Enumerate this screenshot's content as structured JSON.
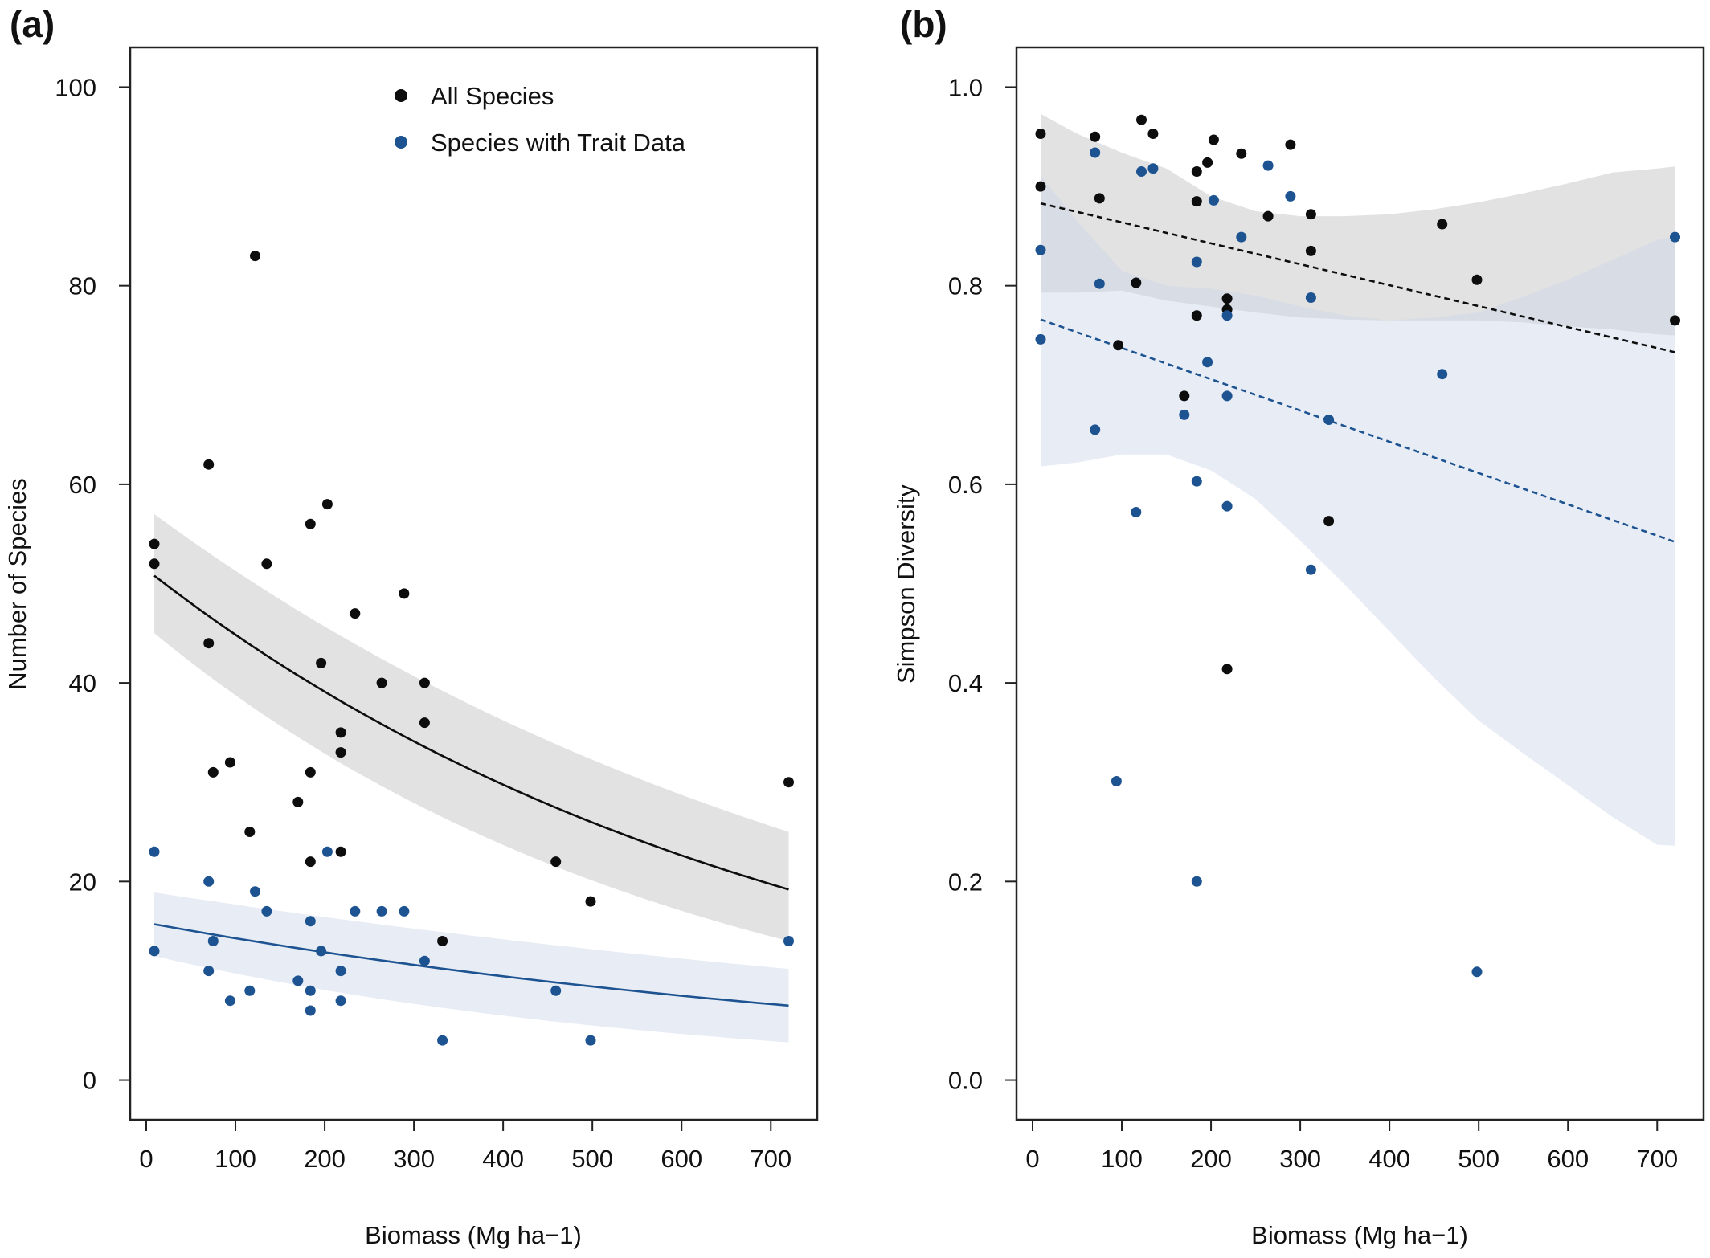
{
  "colors": {
    "all_species": "#0d0d0d",
    "trait_species": "#1d5391",
    "band_all": "#d6d6d6",
    "band_trait": "#c9d5e8",
    "axis": "#222222"
  },
  "chart_data": [
    {
      "type": "scatter",
      "panel_label": "(a)",
      "xlabel": "Biomass (Mg ha−1)",
      "ylabel": "Number of Species",
      "xlim": [
        -18,
        752
      ],
      "ylim": [
        -4,
        104
      ],
      "xticks": [
        0,
        100,
        200,
        300,
        400,
        500,
        600,
        700
      ],
      "yticks": [
        0,
        20,
        40,
        60,
        80,
        100
      ],
      "xtick_labels": [
        "0",
        "100",
        "200",
        "300",
        "400",
        "500",
        "600",
        "700"
      ],
      "ytick_labels": [
        "0",
        "20",
        "40",
        "60",
        "80",
        "100"
      ],
      "grid": false,
      "legend": {
        "position": "top-center",
        "entries": [
          "All Species",
          "Species with Trait Data"
        ]
      },
      "series": [
        {
          "name": "All Species",
          "points": [
            [
              9,
              54
            ],
            [
              9,
              52
            ],
            [
              70,
              62
            ],
            [
              70,
              44
            ],
            [
              75,
              31
            ],
            [
              94,
              32
            ],
            [
              116,
              25
            ],
            [
              122,
              83
            ],
            [
              135,
              52
            ],
            [
              170,
              28
            ],
            [
              184,
              56
            ],
            [
              184,
              31
            ],
            [
              184,
              22
            ],
            [
              196,
              42
            ],
            [
              203,
              58
            ],
            [
              218,
              35
            ],
            [
              218,
              33
            ],
            [
              218,
              23
            ],
            [
              234,
              47
            ],
            [
              264,
              40
            ],
            [
              289,
              49
            ],
            [
              312,
              40
            ],
            [
              312,
              36
            ],
            [
              332,
              14
            ],
            [
              459,
              22
            ],
            [
              498,
              18
            ],
            [
              720,
              30
            ]
          ],
          "fit": {
            "x": [
              9,
              720
            ],
            "y": [
              50.8,
              19.2
            ]
          },
          "band": {
            "x": [
              9,
              720
            ],
            "lower": [
              45,
              14
            ],
            "upper": [
              57,
              25
            ]
          }
        },
        {
          "name": "Species with Trait Data",
          "points": [
            [
              9,
              23
            ],
            [
              9,
              13
            ],
            [
              70,
              20
            ],
            [
              70,
              11
            ],
            [
              75,
              14
            ],
            [
              94,
              8
            ],
            [
              116,
              9
            ],
            [
              122,
              19
            ],
            [
              135,
              17
            ],
            [
              170,
              10
            ],
            [
              184,
              16
            ],
            [
              184,
              9
            ],
            [
              184,
              7
            ],
            [
              196,
              13
            ],
            [
              203,
              23
            ],
            [
              218,
              11
            ],
            [
              218,
              8
            ],
            [
              234,
              17
            ],
            [
              264,
              17
            ],
            [
              289,
              17
            ],
            [
              312,
              12
            ],
            [
              332,
              4
            ],
            [
              459,
              9
            ],
            [
              498,
              4
            ],
            [
              720,
              14
            ]
          ],
          "fit": {
            "x": [
              9,
              720
            ],
            "y": [
              15.7,
              7.5
            ]
          },
          "band": {
            "x": [
              9,
              720
            ],
            "lower": [
              12.5,
              3.8
            ],
            "upper": [
              18.9,
              11.2
            ]
          }
        }
      ]
    },
    {
      "type": "scatter",
      "panel_label": "(b)",
      "xlabel": "Biomass (Mg ha−1)",
      "ylabel": "Simpson Diversity",
      "xlim": [
        -18,
        752
      ],
      "ylim": [
        -0.04,
        1.04
      ],
      "xticks": [
        0,
        100,
        200,
        300,
        400,
        500,
        600,
        700
      ],
      "yticks": [
        0.0,
        0.2,
        0.4,
        0.6,
        0.8,
        1.0
      ],
      "xtick_labels": [
        "0",
        "100",
        "200",
        "300",
        "400",
        "500",
        "600",
        "700"
      ],
      "ytick_labels": [
        "0.0",
        "0.2",
        "0.4",
        "0.6",
        "0.8",
        "1.0"
      ],
      "grid": false,
      "series": [
        {
          "name": "All Species",
          "points": [
            [
              9,
              0.953
            ],
            [
              9,
              0.9
            ],
            [
              70,
              0.95
            ],
            [
              75,
              0.888
            ],
            [
              96,
              0.74
            ],
            [
              116,
              0.803
            ],
            [
              122,
              0.967
            ],
            [
              135,
              0.953
            ],
            [
              170,
              0.689
            ],
            [
              184,
              0.915
            ],
            [
              184,
              0.885
            ],
            [
              184,
              0.77
            ],
            [
              196,
              0.924
            ],
            [
              203,
              0.947
            ],
            [
              218,
              0.787
            ],
            [
              218,
              0.776
            ],
            [
              218,
              0.414
            ],
            [
              234,
              0.933
            ],
            [
              264,
              0.87
            ],
            [
              289,
              0.942
            ],
            [
              312,
              0.872
            ],
            [
              312,
              0.835
            ],
            [
              332,
              0.563
            ],
            [
              459,
              0.862
            ],
            [
              498,
              0.806
            ],
            [
              720,
              0.765
            ]
          ],
          "fit": {
            "x": [
              9,
              720
            ],
            "y": [
              0.883,
              0.733
            ]
          },
          "band": {
            "x": [
              9,
              50,
              100,
              150,
              200,
              250,
              300,
              350,
              400,
              450,
              500,
              550,
              600,
              650,
              700,
              720
            ],
            "lower": [
              0.793,
              0.793,
              0.795,
              0.785,
              0.779,
              0.773,
              0.768,
              0.766,
              0.765,
              0.765,
              0.765,
              0.763,
              0.759,
              0.756,
              0.751,
              0.75
            ],
            "upper": [
              0.973,
              0.953,
              0.934,
              0.918,
              0.89,
              0.875,
              0.87,
              0.87,
              0.872,
              0.877,
              0.884,
              0.893,
              0.903,
              0.914,
              0.918,
              0.92
            ]
          }
        },
        {
          "name": "Species with Trait Data",
          "points": [
            [
              9,
              0.836
            ],
            [
              9,
              0.746
            ],
            [
              70,
              0.934
            ],
            [
              70,
              0.655
            ],
            [
              75,
              0.802
            ],
            [
              94,
              0.301
            ],
            [
              116,
              0.572
            ],
            [
              122,
              0.915
            ],
            [
              135,
              0.918
            ],
            [
              170,
              0.67
            ],
            [
              184,
              0.824
            ],
            [
              184,
              0.603
            ],
            [
              184,
              0.2
            ],
            [
              196,
              0.723
            ],
            [
              203,
              0.886
            ],
            [
              218,
              0.77
            ],
            [
              218,
              0.689
            ],
            [
              218,
              0.578
            ],
            [
              234,
              0.849
            ],
            [
              264,
              0.921
            ],
            [
              289,
              0.89
            ],
            [
              312,
              0.788
            ],
            [
              312,
              0.514
            ],
            [
              332,
              0.665
            ],
            [
              459,
              0.711
            ],
            [
              498,
              0.109
            ],
            [
              720,
              0.849
            ]
          ],
          "fit": {
            "x": [
              9,
              720
            ],
            "y": [
              0.766,
              0.542
            ]
          },
          "band": {
            "x": [
              9,
              50,
              100,
              150,
              200,
              250,
              300,
              350,
              400,
              450,
              500,
              550,
              600,
              650,
              700,
              720
            ],
            "lower": [
              0.618,
              0.622,
              0.63,
              0.63,
              0.614,
              0.585,
              0.543,
              0.499,
              0.452,
              0.405,
              0.362,
              0.329,
              0.297,
              0.265,
              0.237,
              0.236
            ],
            "upper": [
              0.911,
              0.865,
              0.815,
              0.8,
              0.797,
              0.79,
              0.779,
              0.77,
              0.765,
              0.768,
              0.773,
              0.789,
              0.806,
              0.826,
              0.846,
              0.85
            ]
          }
        }
      ]
    }
  ]
}
